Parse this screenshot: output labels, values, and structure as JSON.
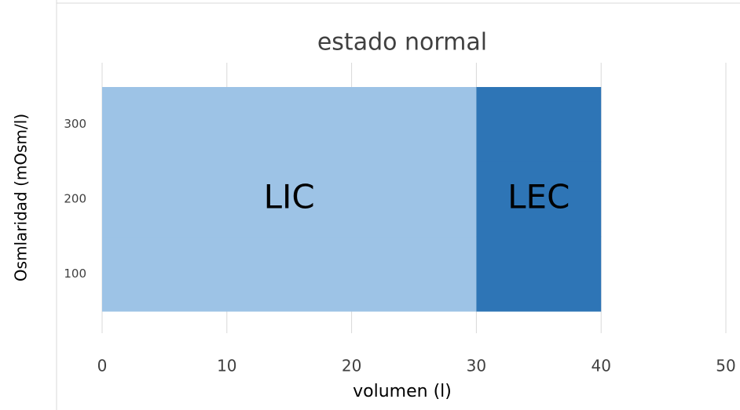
{
  "chart_data": {
    "type": "bar",
    "orientation": "horizontal",
    "stacked": true,
    "title": "estado normal",
    "x_label": "volumen (l)",
    "y_label": "Osmlaridad (mOsm/l)",
    "categories": [
      "100",
      "200",
      "300"
    ],
    "series": [
      {
        "name": "LIC",
        "color": "#9dc3e6",
        "values": [
          30,
          30,
          30
        ]
      },
      {
        "name": "LEC",
        "color": "#2e75b6",
        "values": [
          10,
          10,
          10
        ]
      }
    ],
    "xlim": [
      0,
      50
    ],
    "xticks": [
      0,
      10,
      20,
      30,
      40,
      50
    ],
    "grid": true
  }
}
